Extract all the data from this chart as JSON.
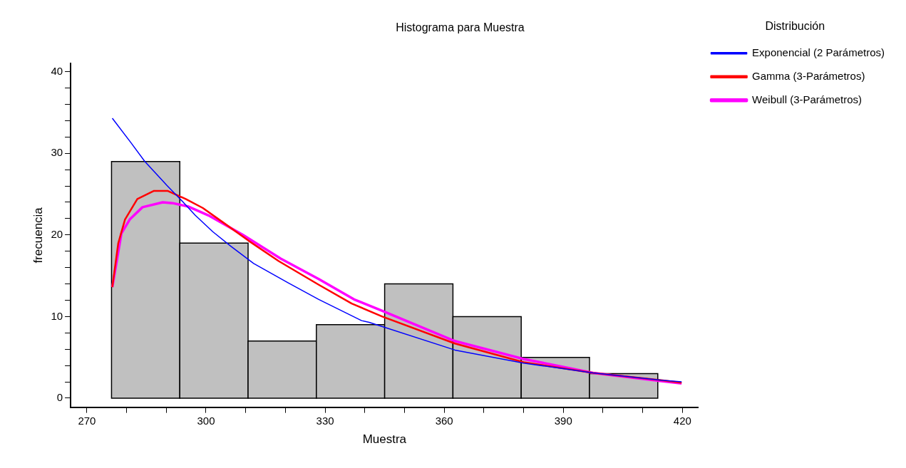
{
  "chart_data": {
    "type": "histogram",
    "title": "Histograma para Muestra",
    "xlabel": "Muestra",
    "ylabel": "frecuencia",
    "legend_title": "Distribución",
    "legend": "right",
    "grid": false,
    "marker": "none",
    "color": "#c0c0c0",
    "bins": [
      276.2,
      293.4,
      310.6,
      327.8,
      345.0,
      362.2,
      379.4,
      396.6,
      413.8
    ],
    "values": [
      29,
      19,
      7,
      9,
      14,
      10,
      5,
      3
    ],
    "xlim": [
      265.9,
      424
    ],
    "xticks": [
      270,
      {
        "value": 280,
        "label": null
      },
      {
        "value": 290,
        "label": null
      },
      300,
      {
        "value": 310,
        "label": null
      },
      {
        "value": 320,
        "label": null
      },
      330,
      {
        "value": 340,
        "label": null
      },
      {
        "value": 350,
        "label": null
      },
      360,
      {
        "value": 370,
        "label": null
      },
      {
        "value": 380,
        "label": null
      },
      390,
      {
        "value": 400,
        "label": null
      },
      {
        "value": 410,
        "label": null
      },
      420
    ],
    "ylim": [
      -1.1,
      41
    ],
    "yticks": [
      0,
      {
        "value": 2,
        "label": null
      },
      {
        "value": 4,
        "label": null
      },
      {
        "value": 6,
        "label": null
      },
      {
        "value": 8,
        "label": null
      },
      10,
      {
        "value": 12,
        "label": null
      },
      {
        "value": 14,
        "label": null
      },
      {
        "value": 16,
        "label": null
      },
      {
        "value": 18,
        "label": null
      },
      20,
      {
        "value": 22,
        "label": null
      },
      {
        "value": 24,
        "label": null
      },
      {
        "value": 26,
        "label": null
      },
      {
        "value": 28,
        "label": null
      },
      30,
      {
        "value": 32,
        "label": null
      },
      {
        "value": 34,
        "label": null
      },
      {
        "value": 36,
        "label": null
      },
      {
        "value": 38,
        "label": null
      },
      40
    ],
    "series": [
      {
        "type": "line",
        "name": "Exponencial (2 Parámetros)",
        "color": "#0000ff",
        "x": [
          276.4,
          281.1,
          284.6,
          290.1,
          293.5,
          297.3,
          301.7,
          306.3,
          312,
          320.8,
          328.4,
          339.2,
          341.1,
          362.7,
          380,
          397.5,
          414.7,
          419.8
        ],
        "values": [
          34.3,
          31.3,
          29.0,
          26.1,
          24.4,
          22.4,
          20.4,
          18.6,
          16.5,
          14.1,
          12.1,
          9.5,
          9.3,
          5.9,
          4.3,
          3.1,
          2.2,
          2.0
        ]
      },
      {
        "type": "line",
        "name": "Gamma (3-Parámetros)",
        "color": "#ff0000",
        "x": [
          276.4,
          277.9,
          279.6,
          282.7,
          286.9,
          290.3,
          294.9,
          299.2,
          304.4,
          310.7,
          318.3,
          328.4,
          336.7,
          344.4,
          362.7,
          380,
          397.5,
          414.7,
          419.8
        ],
        "values": [
          13.6,
          19.0,
          21.9,
          24.4,
          25.4,
          25.4,
          24.4,
          23.3,
          21.5,
          19.3,
          16.8,
          13.9,
          11.6,
          10.0,
          6.7,
          4.4,
          3.1,
          2.2,
          1.9
        ]
      },
      {
        "type": "line",
        "name": "Weibull (3-Parámetros)",
        "color": "#ff00ff",
        "x": [
          276.4,
          278.7,
          280.8,
          284,
          289.1,
          291.6,
          295.4,
          300.6,
          309.3,
          318.8,
          328.4,
          337.3,
          344.4,
          362.7,
          380,
          397.5,
          414.7,
          419.8
        ],
        "values": [
          13.6,
          20.2,
          21.9,
          23.4,
          24.0,
          23.9,
          23.5,
          22.4,
          20.0,
          17.1,
          14.6,
          12.1,
          10.7,
          7.0,
          4.8,
          3.1,
          2.1,
          1.8
        ]
      }
    ]
  }
}
